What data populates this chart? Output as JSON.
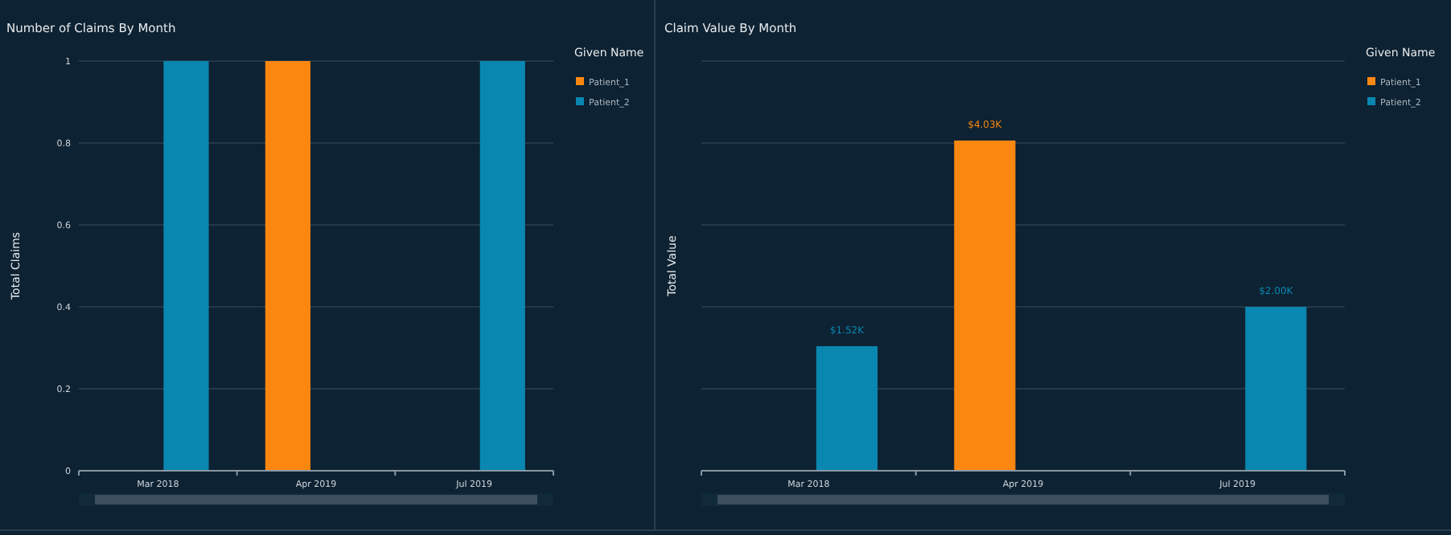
{
  "chart_data": [
    {
      "type": "bar",
      "title": "Number of Claims By Month",
      "ylabel": "Total Claims",
      "legend_title": "Given Name",
      "categories": [
        "Mar 2018",
        "Apr 2019",
        "Jul 2019"
      ],
      "series": [
        {
          "name": "Patient_1",
          "color": "#fb8711",
          "values": [
            null,
            1,
            null
          ]
        },
        {
          "name": "Patient_2",
          "color": "#0a87b0",
          "values": [
            1,
            null,
            1
          ]
        }
      ],
      "ylim": [
        0,
        1
      ],
      "yticks": [
        0,
        0.2,
        0.4,
        0.6,
        0.8,
        1
      ],
      "grid": "y",
      "legend": "top right"
    },
    {
      "type": "bar",
      "title": "Claim Value By Month",
      "ylabel": "Total Value",
      "legend_title": "Given Name",
      "categories": [
        "Mar 2018",
        "Apr 2019",
        "Jul 2019"
      ],
      "series": [
        {
          "name": "Patient_1",
          "color": "#fb8711",
          "values": [
            null,
            4030,
            null
          ],
          "value_labels": [
            null,
            "$4.03K",
            null
          ]
        },
        {
          "name": "Patient_2",
          "color": "#0a87b0",
          "values": [
            1520,
            null,
            2000
          ],
          "value_labels": [
            "$1.52K",
            null,
            "$2.00K"
          ]
        }
      ],
      "ylim": [
        0,
        5000
      ],
      "yticks": [
        {
          "value": 0,
          "label": null
        },
        {
          "value": 1000,
          "label": null
        },
        {
          "value": 2000,
          "label": null
        },
        {
          "value": 3000,
          "label": null
        },
        {
          "value": 4000,
          "label": null
        },
        {
          "value": 5000,
          "label": null
        }
      ],
      "grid": "y",
      "legend": "top right",
      "tick_labels": "x"
    }
  ]
}
